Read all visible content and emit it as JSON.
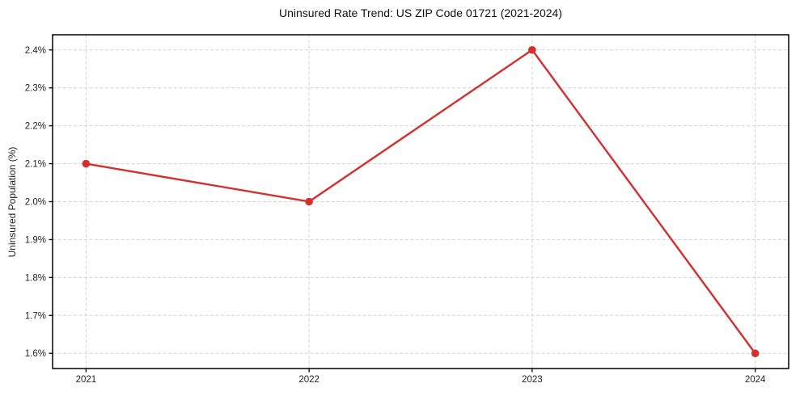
{
  "chart_data": {
    "type": "line",
    "title": "Uninsured Rate Trend: US ZIP Code 01721 (2021-2024)",
    "ylabel": "Uninsured Population (%)",
    "xlabel": "",
    "categories": [
      "2021",
      "2022",
      "2023",
      "2024"
    ],
    "x": [
      2021,
      2022,
      2023,
      2024
    ],
    "values": [
      2.1,
      2.0,
      2.4,
      1.6
    ],
    "y_ticks": [
      1.6,
      1.7,
      1.8,
      1.9,
      2.0,
      2.1,
      2.2,
      2.3,
      2.4
    ],
    "y_tick_labels": [
      "1.6%",
      "1.7%",
      "1.8%",
      "1.9%",
      "2.0%",
      "2.1%",
      "2.2%",
      "2.3%",
      "2.4%"
    ],
    "xlim": [
      2020.85,
      2024.15
    ],
    "ylim": [
      1.56,
      2.44
    ],
    "grid": true,
    "legend_position": "none",
    "colors": {
      "line": "#d32f2f",
      "marker": "#d32f2f",
      "grid": "#d3d3d3",
      "spine": "#111111",
      "text": "#222222",
      "background": "#ffffff"
    }
  }
}
